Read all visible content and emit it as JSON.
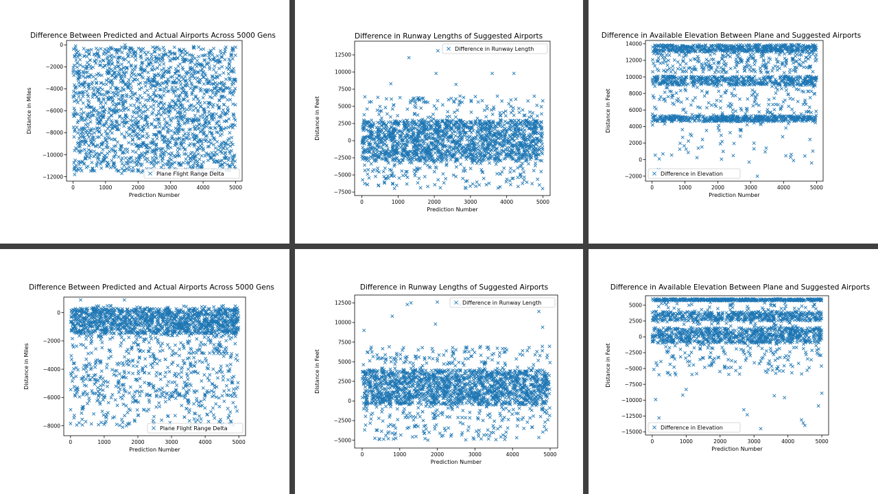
{
  "colors": {
    "marker": "#1f77b4",
    "background": "#3f3f3f",
    "panel": "#ffffff"
  },
  "chart_data": [
    {
      "type": "scatter",
      "title": "Difference Between Predicted and Actual Airports Across 5000 Gens",
      "xlabel": "Prediction Number",
      "ylabel": "Distance in Miles",
      "xlim": [
        -200,
        5200
      ],
      "ylim": [
        -12400,
        400
      ],
      "xticks": [
        0,
        1000,
        2000,
        3000,
        4000,
        5000
      ],
      "yticks": [
        0,
        -2000,
        -4000,
        -6000,
        -8000,
        -10000,
        -12000
      ],
      "xtick_labels": [
        "0",
        "1000",
        "2000",
        "3000",
        "4000",
        "5000"
      ],
      "ytick_labels": [
        "0",
        "−2000",
        "−4000",
        "−6000",
        "−8000",
        "−10000",
        "−12000"
      ],
      "legend": "Plane Flight Range Delta",
      "legend_loc": "lower right",
      "marker": "x",
      "series": [
        {
          "name": "Plane Flight Range Delta",
          "bands": [
            {
              "lo": -11500,
              "hi": -200,
              "weight": 1
            }
          ],
          "outliers": [
            [
              80,
              -100
            ],
            [
              1600,
              0
            ],
            [
              2450,
              -200
            ],
            [
              3700,
              -150
            ],
            [
              50,
              -11800
            ],
            [
              1500,
              -11700
            ],
            [
              2100,
              -11600
            ],
            [
              4300,
              -11500
            ]
          ]
        }
      ]
    },
    {
      "type": "scatter",
      "title": "Difference in Runway Lengths of Suggested Airports",
      "xlabel": "Prediction Number",
      "ylabel": "Distance in Feet",
      "xlim": [
        -200,
        5200
      ],
      "ylim": [
        -8000,
        14500
      ],
      "xticks": [
        0,
        1000,
        2000,
        3000,
        4000,
        5000
      ],
      "yticks": [
        12500,
        10000,
        7500,
        5000,
        2500,
        0,
        -2500,
        -5000,
        -7500
      ],
      "xtick_labels": [
        "0",
        "1000",
        "2000",
        "3000",
        "4000",
        "5000"
      ],
      "ytick_labels": [
        "12500",
        "10000",
        "7500",
        "5000",
        "2500",
        "0",
        "−2500",
        "−5000",
        "−7500"
      ],
      "legend": "Difference in Runway Length",
      "legend_loc": "upper right",
      "marker": "x",
      "series": [
        {
          "name": "Difference in Runway Length",
          "bands": [
            {
              "lo": -3000,
              "hi": 3000,
              "weight": 3
            },
            {
              "lo": -7000,
              "hi": 6500,
              "weight": 1
            }
          ],
          "outliers": [
            [
              1300,
              12100
            ],
            [
              2100,
              13100
            ],
            [
              2050,
              9800
            ],
            [
              3600,
              9800
            ],
            [
              4200,
              9800
            ],
            [
              800,
              8300
            ],
            [
              2600,
              8200
            ]
          ]
        }
      ]
    },
    {
      "type": "scatter",
      "title": "Difference in Available Elevation Between Plane and Suggested Airports",
      "xlabel": "Prediction Number",
      "ylabel": "Distance in Feet",
      "xlim": [
        -200,
        5200
      ],
      "ylim": [
        -2600,
        14400
      ],
      "xticks": [
        0,
        1000,
        2000,
        3000,
        4000,
        5000
      ],
      "yticks": [
        14000,
        12000,
        10000,
        8000,
        6000,
        4000,
        2000,
        0,
        -2000
      ],
      "xtick_labels": [
        "0",
        "1000",
        "2000",
        "3000",
        "4000",
        "5000"
      ],
      "ytick_labels": [
        "14000",
        "12000",
        "10000",
        "8000",
        "6000",
        "4000",
        "2000",
        "0",
        "−2000"
      ],
      "legend": "Difference in Elevation",
      "legend_loc": "lower left",
      "marker": "x",
      "series": [
        {
          "name": "Difference in Elevation",
          "bands": [
            {
              "lo": 13000,
              "hi": 13900,
              "weight": 3
            },
            {
              "lo": 10500,
              "hi": 13800,
              "weight": 2
            },
            {
              "lo": 9000,
              "hi": 10100,
              "weight": 3
            },
            {
              "lo": 4600,
              "hi": 5300,
              "weight": 3
            },
            {
              "lo": 5300,
              "hi": 9000,
              "weight": 1
            },
            {
              "lo": 0,
              "hi": 4600,
              "weight": 0.35
            }
          ],
          "outliers": [
            [
              200,
              -1200
            ],
            [
              3200,
              -2000
            ],
            [
              2950,
              -300
            ],
            [
              4300,
              -100
            ],
            [
              4850,
              -400
            ]
          ]
        }
      ]
    },
    {
      "type": "scatter",
      "title": "Difference Between Predicted and Actual Airports Across 5000 Gens",
      "xlabel": "Prediction Number",
      "ylabel": "Distance in Miles",
      "xlim": [
        -200,
        5200
      ],
      "ylim": [
        -8700,
        1100
      ],
      "xticks": [
        0,
        1000,
        2000,
        3000,
        4000,
        5000
      ],
      "yticks": [
        0,
        -2000,
        -4000,
        -6000,
        -8000
      ],
      "xtick_labels": [
        "0",
        "1000",
        "2000",
        "3000",
        "4000",
        "5000"
      ],
      "ytick_labels": [
        "0",
        "−2000",
        "−4000",
        "−6000",
        "−8000"
      ],
      "legend": "Plane Flight Range Delta",
      "legend_loc": "lower right",
      "marker": "x",
      "series": [
        {
          "name": "Plane Flight Range Delta",
          "bands": [
            {
              "lo": -1500,
              "hi": 300,
              "weight": 3
            },
            {
              "lo": -6000,
              "hi": 500,
              "weight": 2
            },
            {
              "lo": -8000,
              "hi": -5500,
              "weight": 0.5
            }
          ],
          "outliers": [
            [
              300,
              900
            ],
            [
              1600,
              900
            ],
            [
              1550,
              -8100
            ],
            [
              1000,
              -7900
            ],
            [
              4100,
              -7700
            ]
          ]
        }
      ]
    },
    {
      "type": "scatter",
      "title": "Difference in Runway Lengths of Suggested Airports",
      "xlabel": "Prediction Number",
      "ylabel": "Distance in Feet",
      "xlim": [
        -200,
        5200
      ],
      "ylim": [
        -6000,
        13500
      ],
      "xticks": [
        0,
        1000,
        2000,
        3000,
        4000,
        5000
      ],
      "yticks": [
        12500,
        10000,
        7500,
        5000,
        2500,
        0,
        -2500,
        -5000
      ],
      "xtick_labels": [
        "0",
        "1000",
        "2000",
        "3000",
        "4000",
        "5000"
      ],
      "ytick_labels": [
        "12500",
        "10000",
        "7500",
        "5000",
        "2500",
        "0",
        "−2500",
        "−5000"
      ],
      "legend": "Difference in Runway Length",
      "legend_loc": "upper right",
      "marker": "x",
      "series": [
        {
          "name": "Difference in Runway Length",
          "bands": [
            {
              "lo": -500,
              "hi": 4000,
              "weight": 3
            },
            {
              "lo": -5000,
              "hi": 7000,
              "weight": 1.2
            }
          ],
          "outliers": [
            [
              1200,
              12300
            ],
            [
              1300,
              12500
            ],
            [
              2000,
              12600
            ],
            [
              2600,
              12300
            ],
            [
              800,
              10800
            ],
            [
              1950,
              9800
            ],
            [
              4700,
              11400
            ],
            [
              4800,
              9400
            ],
            [
              50,
              9000
            ]
          ]
        }
      ]
    },
    {
      "type": "scatter",
      "title": "Difference in Available Elevation Between Plane and Suggested Airports",
      "xlabel": "Prediction Number",
      "ylabel": "Distance in Feet",
      "xlim": [
        -200,
        5200
      ],
      "ylim": [
        -15500,
        6500
      ],
      "xticks": [
        0,
        1000,
        2000,
        3000,
        4000,
        5000
      ],
      "yticks": [
        5000,
        2500,
        0,
        -2500,
        -5000,
        -7500,
        -10000,
        -12500,
        -15000
      ],
      "xtick_labels": [
        "0",
        "1000",
        "2000",
        "3000",
        "4000",
        "5000"
      ],
      "ytick_labels": [
        "5000",
        "2500",
        "0",
        "−2500",
        "−5000",
        "−7500",
        "−10000",
        "−12500",
        "−15000"
      ],
      "legend": "Difference in Elevation",
      "legend_loc": "lower left",
      "marker": "x",
      "series": [
        {
          "name": "Difference in Elevation",
          "bands": [
            {
              "lo": 5700,
              "hi": 6000,
              "weight": 2
            },
            {
              "lo": -1000,
              "hi": 1500,
              "weight": 3
            },
            {
              "lo": 2500,
              "hi": 4000,
              "weight": 2
            },
            {
              "lo": -3500,
              "hi": 5500,
              "weight": 1.3
            },
            {
              "lo": -6000,
              "hi": -3500,
              "weight": 0.3
            }
          ],
          "outliers": [
            [
              100,
              -9900
            ],
            [
              200,
              -12800
            ],
            [
              900,
              -9200
            ],
            [
              1000,
              -8300
            ],
            [
              2700,
              -11500
            ],
            [
              2800,
              -12300
            ],
            [
              3200,
              -14500
            ],
            [
              4400,
              -13100
            ],
            [
              4450,
              -13600
            ],
            [
              4500,
              -14000
            ],
            [
              4900,
              -10900
            ],
            [
              5000,
              -8900
            ],
            [
              3600,
              -9300
            ],
            [
              3900,
              -9600
            ]
          ]
        }
      ]
    }
  ]
}
